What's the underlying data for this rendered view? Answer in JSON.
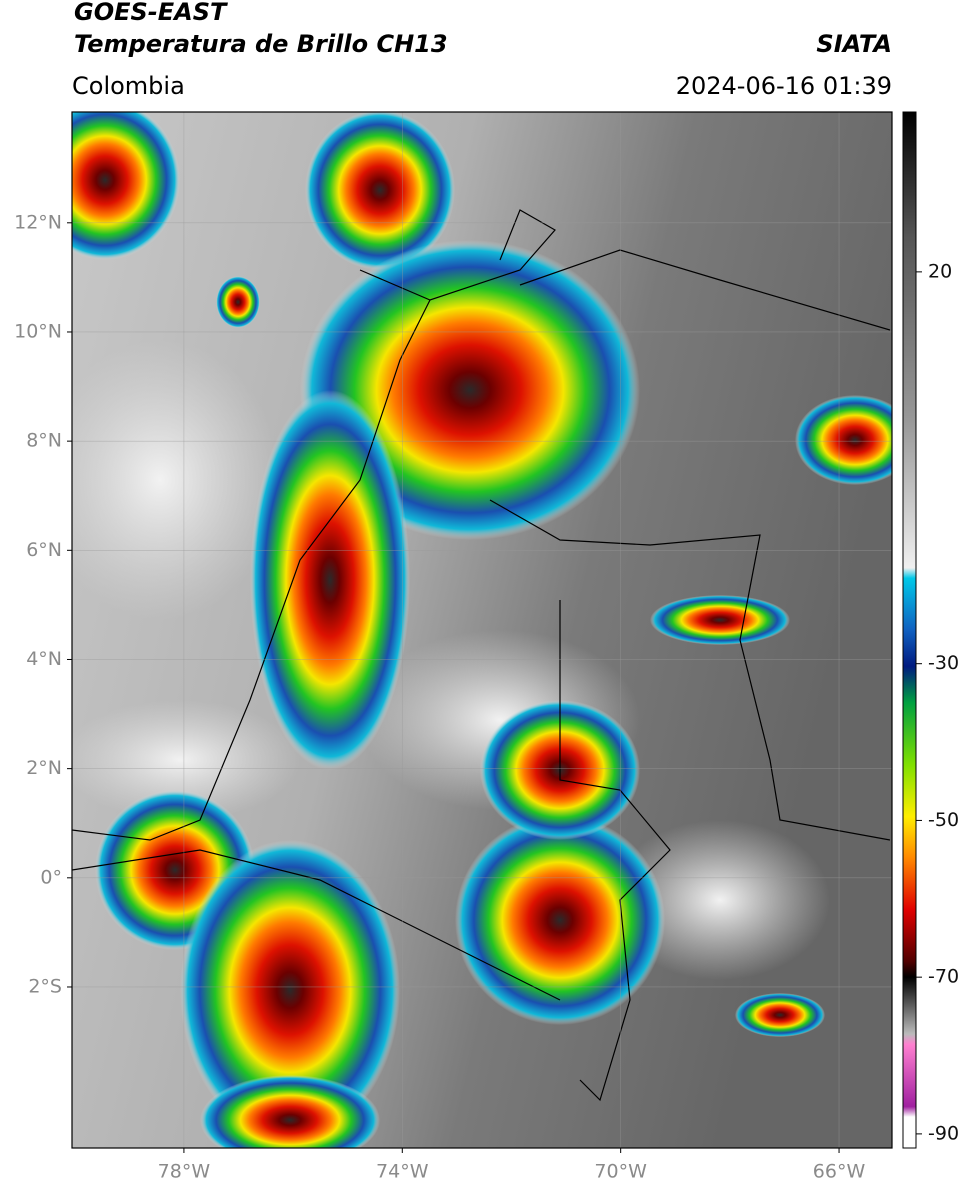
{
  "header": {
    "title": "GOES-EAST",
    "subtitle": "Temperatura de Brillo CH13",
    "source": "SIATA",
    "region": "Colombia",
    "timestamp": "2024-06-16 01:39"
  },
  "map": {
    "xlim": [
      -80.05,
      -65.03
    ],
    "ylim": [
      -4.95,
      14.03
    ],
    "xticks": [
      {
        "value": -78,
        "label": "78°W"
      },
      {
        "value": -74,
        "label": "74°W"
      },
      {
        "value": -70,
        "label": "70°W"
      },
      {
        "value": -66,
        "label": "66°W"
      }
    ],
    "yticks": [
      {
        "value": 12,
        "label": "12°N"
      },
      {
        "value": 10,
        "label": "10°N"
      },
      {
        "value": 8,
        "label": "8°N"
      },
      {
        "value": 6,
        "label": "6°N"
      },
      {
        "value": 4,
        "label": "4°N"
      },
      {
        "value": 2,
        "label": "2°N"
      },
      {
        "value": 0,
        "label": "0°"
      },
      {
        "value": -2,
        "label": "2°S"
      }
    ]
  },
  "colorbar": {
    "lim": [
      -91.8,
      40.4
    ],
    "ticks": [
      20,
      -30,
      -50,
      -70,
      -90
    ]
  }
}
